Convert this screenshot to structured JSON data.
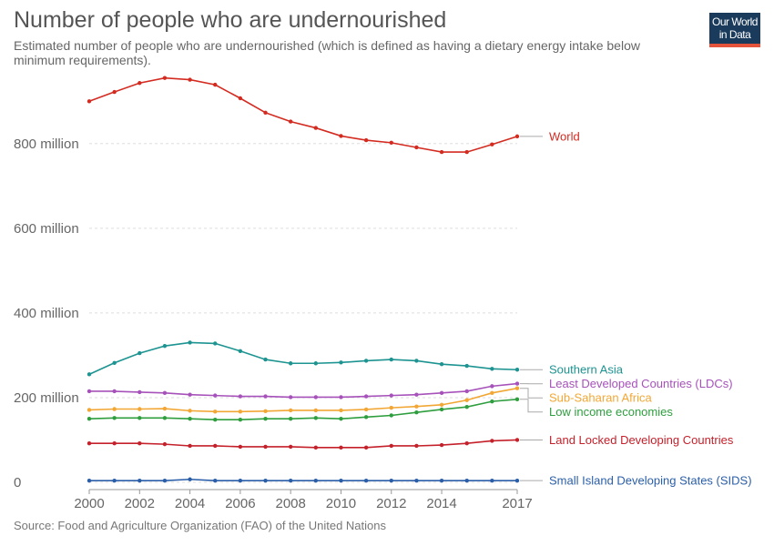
{
  "header": {
    "title": "Number of people who are undernourished",
    "subtitle": "Estimated number of people who are undernourished (which is defined as having a dietary energy intake below minimum requirements).",
    "logo_line1": "Our World",
    "logo_line2": "in Data"
  },
  "footer": {
    "source": "Source: Food and Agriculture Organization (FAO) of the United Nations"
  },
  "chart_data": {
    "type": "line",
    "title": "Number of people who are undernourished",
    "subtitle": "Estimated number of people who are undernourished (which is defined as having a dietary energy intake below minimum requirements).",
    "xlabel": "",
    "ylabel": "",
    "x": [
      2000,
      2001,
      2002,
      2003,
      2004,
      2005,
      2006,
      2007,
      2008,
      2009,
      2010,
      2011,
      2012,
      2013,
      2014,
      2015,
      2016,
      2017
    ],
    "xticks": [
      2000,
      2002,
      2004,
      2006,
      2008,
      2010,
      2012,
      2014,
      2017
    ],
    "xtick_labels": [
      "2000",
      "2002",
      "2004",
      "2006",
      "2008",
      "2010",
      "2012",
      "2014",
      "2017"
    ],
    "xlim": [
      2000,
      2017
    ],
    "ylim": [
      0,
      950000000
    ],
    "yticks": [
      0,
      200000000,
      400000000,
      600000000,
      800000000
    ],
    "ytick_labels": [
      "0",
      "200 million",
      "400 million",
      "600 million",
      "800 million"
    ],
    "grid": "horizontal dashed",
    "legend": "labels at right end of lines",
    "series": [
      {
        "name": "World",
        "color": "#d42b21",
        "values": [
          900000000,
          922000000,
          943000000,
          955000000,
          951000000,
          939000000,
          907000000,
          873000000,
          852000000,
          837000000,
          818000000,
          808000000,
          802000000,
          791000000,
          780000000,
          780000000,
          798000000,
          817000000
        ]
      },
      {
        "name": "Southern Asia",
        "color": "#1d9491",
        "values": [
          255000000,
          282000000,
          305000000,
          322000000,
          330000000,
          328000000,
          310000000,
          290000000,
          281000000,
          281000000,
          283000000,
          287000000,
          290000000,
          287000000,
          279000000,
          275000000,
          268000000,
          266000000
        ]
      },
      {
        "name": "Least Developed Countries (LDCs)",
        "color": "#a652ba",
        "values": [
          215000000,
          215000000,
          213000000,
          211000000,
          207000000,
          205000000,
          203000000,
          203000000,
          201000000,
          201000000,
          201000000,
          203000000,
          205000000,
          207000000,
          211000000,
          215000000,
          227000000,
          233000000
        ]
      },
      {
        "name": "Sub-Saharan Africa",
        "color": "#f2a735",
        "values": [
          171000000,
          173000000,
          173000000,
          174000000,
          169000000,
          167000000,
          167000000,
          168000000,
          170000000,
          170000000,
          170000000,
          172000000,
          176000000,
          179000000,
          183000000,
          194000000,
          211000000,
          222000000
        ]
      },
      {
        "name": "Low income economies",
        "color": "#2e9e3e",
        "values": [
          150000000,
          152000000,
          152000000,
          152000000,
          150000000,
          148000000,
          148000000,
          150000000,
          150000000,
          152000000,
          150000000,
          154000000,
          158000000,
          165000000,
          172000000,
          178000000,
          191000000,
          196000000
        ]
      },
      {
        "name": "Land Locked Developing Countries",
        "color": "#c4212b",
        "values": [
          92000000,
          92000000,
          92000000,
          90000000,
          86000000,
          86000000,
          84000000,
          84000000,
          84000000,
          82000000,
          82000000,
          82000000,
          86000000,
          86000000,
          88000000,
          92000000,
          98000000,
          100000000
        ]
      },
      {
        "name": "Small Island Developing States (SIDS)",
        "color": "#2a5ea8",
        "values": [
          4000000,
          4000000,
          4000000,
          4000000,
          7000000,
          4000000,
          4000000,
          4000000,
          4000000,
          4000000,
          4000000,
          4000000,
          4000000,
          4000000,
          4000000,
          4000000,
          4000000,
          4000000
        ]
      }
    ]
  }
}
